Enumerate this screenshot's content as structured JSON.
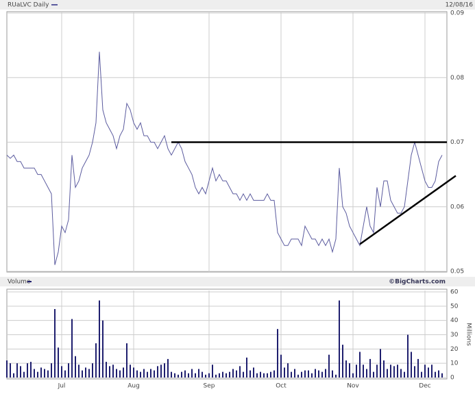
{
  "header": {
    "symbol": "RUaLVC Daily",
    "date": "12/08/16",
    "volume_label": "Volume",
    "credit": "©BigCharts.com"
  },
  "chart_data": [
    {
      "type": "line",
      "color": "#5a5a9e",
      "grid": true,
      "categories": [
        null,
        null,
        null,
        null,
        null,
        null,
        null,
        null,
        null,
        null,
        null,
        null,
        null,
        null,
        null,
        null,
        "Jul",
        null,
        null,
        null,
        null,
        null,
        null,
        null,
        null,
        null,
        null,
        null,
        null,
        null,
        null,
        null,
        null,
        null,
        null,
        null,
        null,
        "Aug",
        null,
        null,
        null,
        null,
        null,
        null,
        null,
        null,
        null,
        null,
        null,
        null,
        null,
        null,
        null,
        null,
        null,
        null,
        null,
        null,
        null,
        "Sep",
        null,
        null,
        null,
        null,
        null,
        null,
        null,
        null,
        null,
        null,
        null,
        null,
        null,
        null,
        null,
        null,
        null,
        null,
        null,
        null,
        "Oct",
        null,
        null,
        null,
        null,
        null,
        null,
        null,
        null,
        null,
        null,
        null,
        null,
        null,
        null,
        null,
        null,
        null,
        null,
        null,
        null,
        "Nov",
        null,
        null,
        null,
        null,
        null,
        null,
        null,
        null,
        null,
        null,
        null,
        null,
        null,
        null,
        null,
        null,
        null,
        null,
        null,
        null,
        "Dec",
        null,
        null,
        null,
        null,
        null
      ],
      "values": [
        0.068,
        0.0675,
        0.068,
        0.067,
        0.067,
        0.066,
        0.066,
        0.066,
        0.066,
        0.065,
        0.065,
        0.064,
        0.063,
        0.062,
        0.051,
        0.053,
        0.057,
        0.056,
        0.058,
        0.068,
        0.063,
        0.064,
        0.066,
        0.067,
        0.068,
        0.07,
        0.073,
        0.084,
        0.075,
        0.073,
        0.072,
        0.071,
        0.069,
        0.071,
        0.072,
        0.076,
        0.075,
        0.073,
        0.072,
        0.073,
        0.071,
        0.071,
        0.07,
        0.07,
        0.069,
        0.07,
        0.071,
        0.069,
        0.068,
        0.069,
        0.07,
        0.069,
        0.067,
        0.066,
        0.065,
        0.063,
        0.062,
        0.063,
        0.062,
        0.064,
        0.066,
        0.064,
        0.065,
        0.064,
        0.064,
        0.063,
        0.062,
        0.062,
        0.061,
        0.062,
        0.061,
        0.062,
        0.061,
        0.061,
        0.061,
        0.061,
        0.062,
        0.061,
        0.061,
        0.056,
        0.055,
        0.054,
        0.054,
        0.055,
        0.055,
        0.055,
        0.054,
        0.057,
        0.056,
        0.055,
        0.055,
        0.054,
        0.055,
        0.054,
        0.055,
        0.053,
        0.055,
        0.066,
        0.06,
        0.059,
        0.057,
        0.056,
        0.055,
        0.054,
        0.057,
        0.06,
        0.057,
        0.056,
        0.063,
        0.06,
        0.064,
        0.064,
        0.061,
        0.06,
        0.059,
        0.059,
        0.06,
        0.064,
        0.068,
        0.07,
        0.068,
        0.066,
        0.064,
        0.063,
        0.063,
        0.064,
        0.067,
        0.068
      ],
      "ylim": [
        0.05,
        0.09
      ],
      "yticks": [
        0.05,
        0.06,
        0.07,
        0.08,
        0.09
      ],
      "trendlines": [
        {
          "x": [
            48,
            128.4
          ],
          "y": [
            0.07,
            0.07
          ]
        },
        {
          "x": [
            103,
            131
          ],
          "y": [
            0.0542,
            0.0648
          ]
        }
      ]
    },
    {
      "type": "bar",
      "color": "#1e1e6e",
      "grid": true,
      "ylabel": "Millions",
      "values": [
        12,
        10,
        3,
        10,
        8,
        4,
        10,
        11,
        6,
        4,
        7,
        6,
        5,
        10,
        48,
        21,
        8,
        5,
        10,
        41,
        15,
        9,
        5,
        7,
        6,
        10,
        24,
        54,
        40,
        11,
        8,
        9,
        6,
        5,
        7,
        24,
        9,
        7,
        5,
        4,
        6,
        4,
        6,
        5,
        8,
        9,
        10,
        13,
        4,
        3,
        2,
        4,
        5,
        3,
        6,
        3,
        6,
        4,
        2,
        3,
        9,
        2,
        3,
        4,
        3,
        4,
        6,
        5,
        8,
        4,
        14,
        5,
        7,
        3,
        4,
        3,
        3,
        4,
        5,
        34,
        16,
        7,
        10,
        4,
        6,
        2,
        4,
        5,
        5,
        3,
        6,
        5,
        4,
        6,
        16,
        5,
        2,
        54,
        23,
        12,
        10,
        3,
        9,
        18,
        9,
        6,
        13,
        4,
        9,
        20,
        12,
        6,
        9,
        8,
        9,
        6,
        4,
        30,
        18,
        8,
        13,
        4,
        9,
        7,
        9,
        4,
        5,
        3
      ],
      "ylim": [
        0,
        60
      ],
      "yticks": [
        0,
        10,
        20,
        30,
        40,
        50,
        60
      ]
    }
  ]
}
